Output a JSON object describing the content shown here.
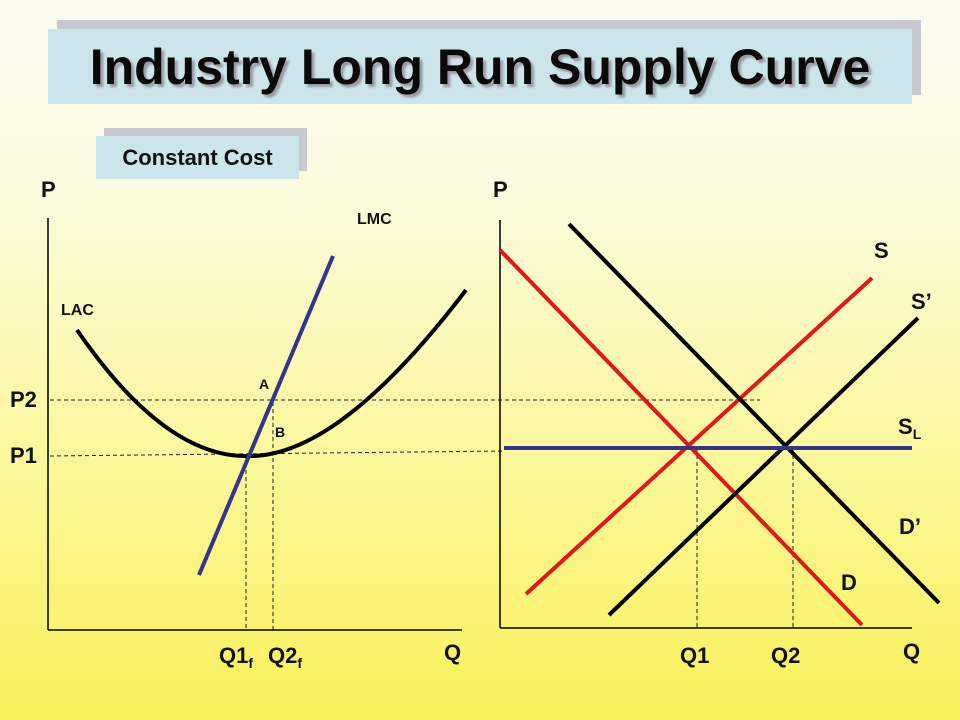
{
  "title": "Industry Long Run Supply Curve",
  "subtitle": "Constant Cost",
  "left_panel": {
    "y_axis": "P",
    "x_axis": "Q",
    "curves": {
      "lac": "LAC",
      "lmc": "LMC"
    },
    "points": {
      "a": "A",
      "b": "B"
    },
    "price_levels": {
      "p2": "P2",
      "p1": "P1"
    },
    "quantities": {
      "q1f_main": "Q1",
      "q1f_sub": "f",
      "q2f_main": "Q2",
      "q2f_sub": "f"
    }
  },
  "right_panel": {
    "y_axis": "P",
    "x_axis": "Q",
    "curves": {
      "s": "S",
      "s_prime": "S’",
      "sl_main": "S",
      "sl_sub": "L",
      "d_prime": "D’",
      "d": "D"
    },
    "quantities": {
      "q1": "Q1",
      "q2": "Q2"
    }
  },
  "colors": {
    "red_curves": "#e01818",
    "black_curves": "#000000",
    "blue_curves": "#34358a",
    "long_run_supply": "#34358a"
  }
}
